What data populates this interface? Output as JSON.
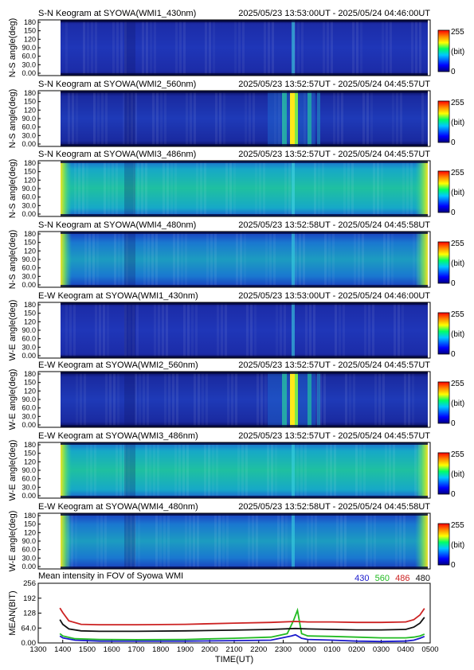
{
  "keograms": [
    {
      "title": "S-N Keogram at SYOWA(WMI1_430nm)",
      "period": "2025/05/23 13:53:00UT - 2025/05/24 04:46:00UT",
      "ylabel": "N-S angle(deg)",
      "palette": "blue-dark",
      "has_sky_glow": false
    },
    {
      "title": "S-N Keogram at SYOWA(WMI2_560nm)",
      "period": "2025/05/23 13:52:57UT - 2025/05/24 04:45:57UT",
      "ylabel": "N-S angle(deg)",
      "palette": "blue-aurora",
      "has_sky_glow": false
    },
    {
      "title": "S-N Keogram at SYOWA(WMI3_486nm)",
      "period": "2025/05/23 13:52:57UT - 2025/05/24 04:45:57UT",
      "ylabel": "N-S angle(deg)",
      "palette": "green-bright",
      "has_sky_glow": true
    },
    {
      "title": "S-N Keogram at SYOWA(WMI4_480nm)",
      "period": "2025/05/23 13:52:58UT - 2025/05/24 04:45:58UT",
      "ylabel": "N-S angle(deg)",
      "palette": "green-mid",
      "has_sky_glow": true
    },
    {
      "title": "E-W Keogram at SYOWA(WMI1_430nm)",
      "period": "2025/05/23 13:53:00UT - 2025/05/24 04:46:00UT",
      "ylabel": "W-E angle(deg)",
      "palette": "blue-dark",
      "has_sky_glow": false
    },
    {
      "title": "E-W Keogram at SYOWA(WMI2_560nm)",
      "period": "2025/05/23 13:52:57UT - 2025/05/24 04:45:57UT",
      "ylabel": "W-E angle(deg)",
      "palette": "blue-aurora",
      "has_sky_glow": false
    },
    {
      "title": "E-W Keogram at SYOWA(WMI3_486nm)",
      "period": "2025/05/23 13:52:57UT - 2025/05/24 04:45:57UT",
      "ylabel": "W-E angle(deg)",
      "palette": "green-bright",
      "has_sky_glow": true
    },
    {
      "title": "E-W Keogram at SYOWA(WMI4_480nm)",
      "period": "2025/05/23 13:52:58UT - 2025/05/24 04:45:58UT",
      "ylabel": "W-E angle(deg)",
      "palette": "green-mid",
      "has_sky_glow": true
    }
  ],
  "keogram_yticks": [
    "0.00",
    "30.0",
    "60.0",
    "90.0",
    "120",
    "150",
    "180"
  ],
  "colorbar": {
    "max_label": "255",
    "unit_label": "(bit)",
    "min_label": "0"
  },
  "chart_data": {
    "type": "line",
    "title": "Mean intensity in FOV of Syowa WMI",
    "xlabel": "TIME(UT)",
    "ylabel": "MEAN(BIT)",
    "xticks": [
      "1300",
      "1400",
      "1500",
      "1600",
      "1700",
      "1800",
      "1900",
      "2000",
      "2100",
      "2200",
      "2300",
      "0000",
      "0100",
      "0200",
      "0300",
      "0400",
      "0500"
    ],
    "yticks": [
      "0.00",
      "64.0",
      "128",
      "192",
      "256"
    ],
    "ylim": [
      0,
      256
    ],
    "grid": false,
    "legend_placement": "top-right",
    "series": [
      {
        "name": "430",
        "color": "#1a1acc",
        "x": [
          "13:53",
          "14:00",
          "14:30",
          "15:30",
          "17:00",
          "19:00",
          "21:00",
          "22:30",
          "23:20",
          "23:30",
          "23:45",
          "00:00",
          "01:00",
          "02:00",
          "03:00",
          "04:00",
          "04:20",
          "04:35",
          "04:46"
        ],
        "values": [
          30,
          22,
          12,
          8,
          8,
          8,
          10,
          12,
          30,
          35,
          20,
          15,
          12,
          8,
          6,
          8,
          12,
          20,
          28
        ]
      },
      {
        "name": "560",
        "color": "#22bb22",
        "x": [
          "13:53",
          "14:00",
          "14:30",
          "15:30",
          "17:00",
          "19:00",
          "21:00",
          "22:30",
          "23:10",
          "23:25",
          "23:35",
          "23:45",
          "00:00",
          "01:00",
          "02:00",
          "03:00",
          "04:00",
          "04:20",
          "04:35",
          "04:46"
        ],
        "values": [
          40,
          30,
          18,
          15,
          14,
          15,
          20,
          25,
          40,
          95,
          140,
          40,
          30,
          28,
          25,
          22,
          22,
          25,
          30,
          38
        ]
      },
      {
        "name": "486",
        "color": "#cc2222",
        "x": [
          "13:53",
          "14:00",
          "14:15",
          "14:45",
          "15:30",
          "17:00",
          "19:00",
          "21:00",
          "22:30",
          "23:30",
          "00:00",
          "01:00",
          "02:00",
          "03:00",
          "04:00",
          "04:20",
          "04:35",
          "04:46"
        ],
        "values": [
          150,
          130,
          95,
          80,
          78,
          78,
          80,
          85,
          88,
          92,
          90,
          90,
          88,
          88,
          90,
          100,
          120,
          148
        ]
      },
      {
        "name": "480",
        "color": "#111111",
        "x": [
          "13:53",
          "14:00",
          "14:15",
          "14:45",
          "15:30",
          "17:00",
          "19:00",
          "21:00",
          "22:30",
          "23:30",
          "00:00",
          "01:00",
          "02:00",
          "03:00",
          "04:00",
          "04:20",
          "04:35",
          "04:46"
        ],
        "values": [
          100,
          80,
          60,
          52,
          50,
          50,
          52,
          55,
          58,
          62,
          60,
          58,
          56,
          56,
          58,
          68,
          85,
          110
        ]
      }
    ]
  }
}
